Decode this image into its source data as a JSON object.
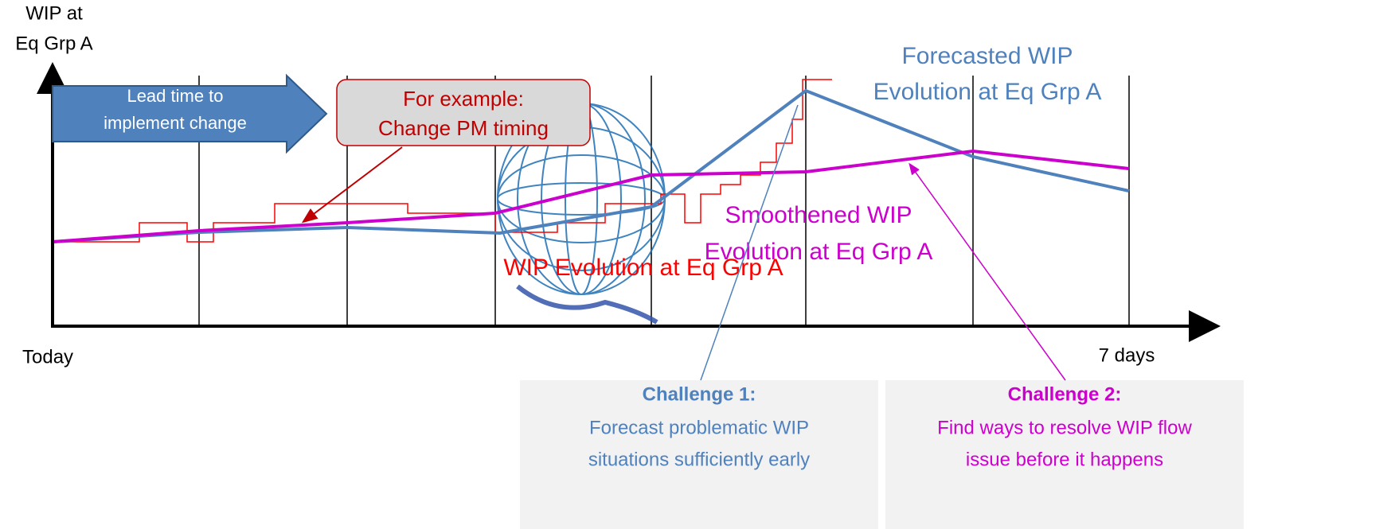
{
  "axis": {
    "y_label": [
      "WIP at",
      "Eq Grp A"
    ],
    "x_start": "Today",
    "x_end": "7 days"
  },
  "lead_time_arrow": {
    "lines": [
      "Lead time to",
      "implement change"
    ]
  },
  "callout": {
    "lines": [
      "For example:",
      "Change PM timing"
    ]
  },
  "labels": {
    "forecasted": [
      "Forecasted WIP",
      "Evolution at Eq Grp A"
    ],
    "smoothened": [
      "Smoothened WIP",
      "Evolution at Eq Grp A"
    ],
    "actual": "WIP Evolution at Eq Grp A"
  },
  "challenges": [
    {
      "title": "Challenge 1:",
      "lines": [
        "Forecast problematic WIP",
        "situations sufficiently early"
      ]
    },
    {
      "title": "Challenge 2:",
      "lines": [
        "Find ways to resolve WIP flow",
        "issue before it happens"
      ]
    }
  ]
}
